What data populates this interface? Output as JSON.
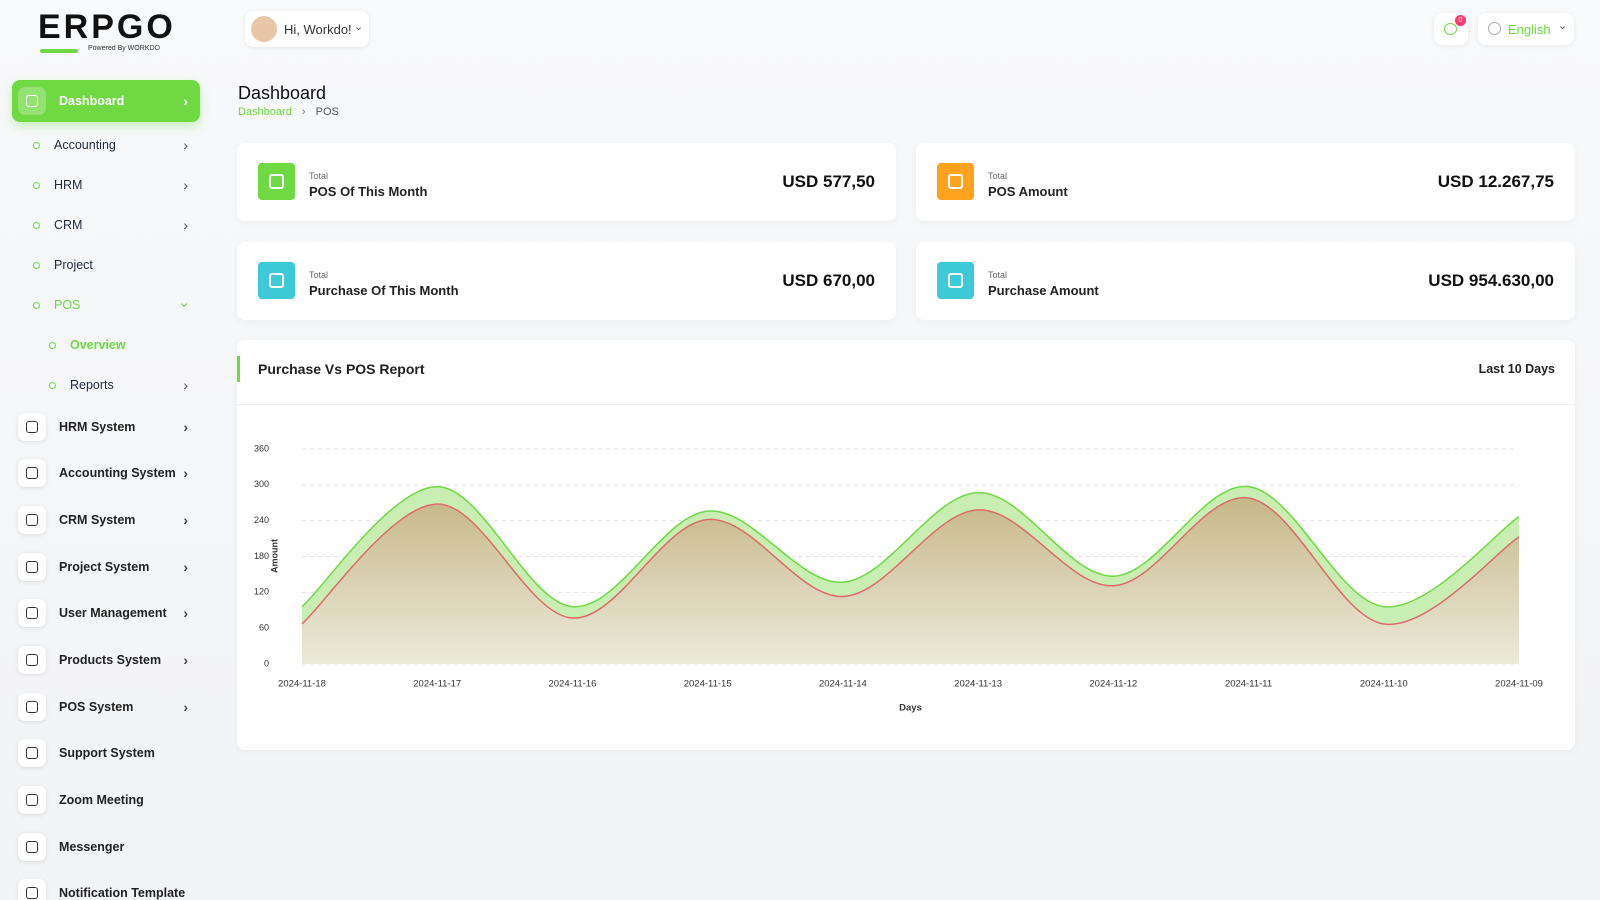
{
  "logo": {
    "brand": "ERPGO",
    "tagline": "Powered By WORKDO"
  },
  "header": {
    "greeting": "Hi, Workdo!",
    "notifications": 0,
    "language": "English"
  },
  "sidebar": {
    "items": [
      "Dashboard",
      "Accounting",
      "HRM",
      "CRM",
      "Project",
      "POS",
      "Overview",
      "Reports",
      "HRM System",
      "Accounting System",
      "CRM System",
      "Project System",
      "User Management",
      "Products System",
      "POS System",
      "Support System",
      "Zoom Meeting",
      "Messenger",
      "Notification Template"
    ]
  },
  "page": {
    "title": "Dashboard",
    "breadcrumb": [
      "Dashboard",
      "POS"
    ]
  },
  "stats": [
    {
      "caption": "Total",
      "label": "POS Of This Month",
      "value": "USD 577,50",
      "color": "#6fd943"
    },
    {
      "caption": "Total",
      "label": "POS Amount",
      "value": "USD 12.267,75",
      "color": "#ffa21d"
    },
    {
      "caption": "Total",
      "label": "Purchase Of This Month",
      "value": "USD 670,00",
      "color": "#3ec9d6"
    },
    {
      "caption": "Total",
      "label": "Purchase Amount",
      "value": "USD 954.630,00",
      "color": "#3ec9d6"
    }
  ],
  "report": {
    "title": "Purchase Vs POS Report",
    "period": "Last 10 Days"
  },
  "chart_data": {
    "type": "area",
    "x_label": "Days",
    "y_label": "Amount",
    "categories": [
      "2024-11-18",
      "2024-11-17",
      "2024-11-16",
      "2024-11-15",
      "2024-11-14",
      "2024-11-13",
      "2024-11-12",
      "2024-11-11",
      "2024-11-10",
      "2024-11-09"
    ],
    "series": [
      {
        "color": "#6fd943",
        "values": [
          96,
          297,
          96,
          256,
          137,
          287,
          147,
          297,
          96,
          247
        ]
      },
      {
        "color": "#e06a6a",
        "values": [
          67,
          268,
          77,
          242,
          113,
          258,
          131,
          278,
          67,
          213
        ]
      }
    ],
    "ylim": [
      0,
      360
    ],
    "yticks": [
      0,
      60,
      120,
      180,
      240,
      300,
      360
    ],
    "grid": true
  }
}
